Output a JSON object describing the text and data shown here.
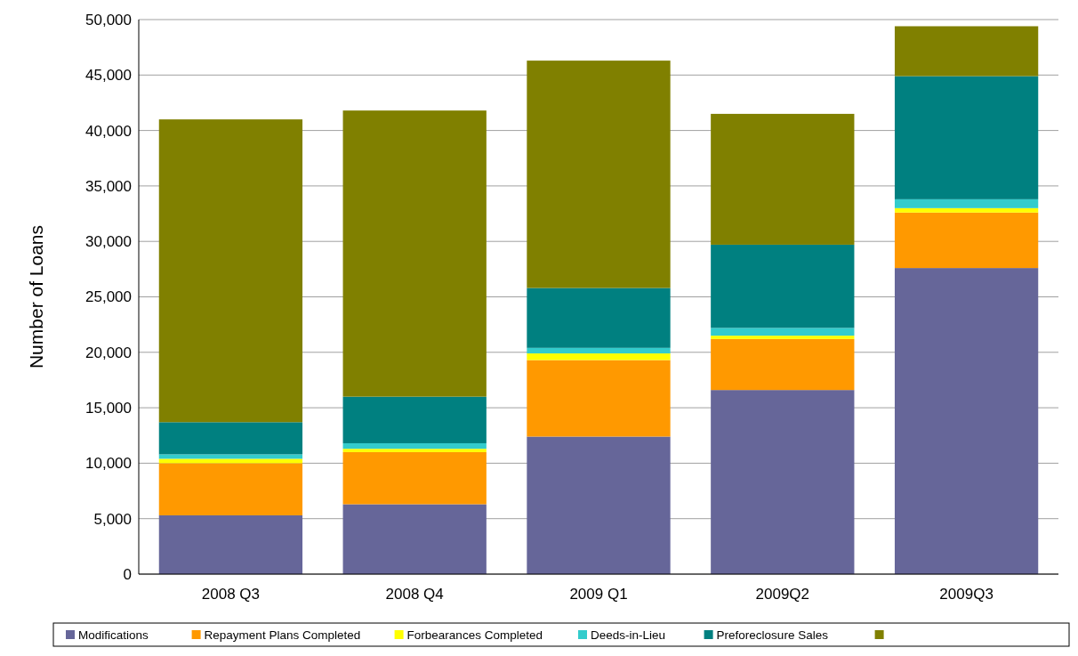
{
  "chart_data": {
    "type": "bar",
    "stacked": true,
    "ylabel": "Number of Loans",
    "categories": [
      "2008 Q3",
      "2008 Q4",
      "2009 Q1",
      "2009Q2",
      "2009Q3"
    ],
    "series": [
      {
        "name": "Modifications",
        "color": "#666699",
        "values": [
          5300,
          6300,
          12400,
          16600,
          27600
        ]
      },
      {
        "name": "Repayment Plans Completed",
        "color": "#ff9900",
        "values": [
          4700,
          4700,
          6900,
          4600,
          5000
        ]
      },
      {
        "name": "Forbearances Completed",
        "color": "#ffff00",
        "values": [
          400,
          300,
          600,
          300,
          400
        ]
      },
      {
        "name": "Deeds-in-Lieu",
        "color": "#33cccc",
        "values": [
          400,
          500,
          500,
          700,
          800
        ]
      },
      {
        "name": "Preforeclosure Sales",
        "color": "#008080",
        "values": [
          2900,
          4200,
          5400,
          7500,
          11100
        ]
      },
      {
        "color": "#808000",
        "values": [
          27300,
          25800,
          20500,
          11800,
          4500
        ]
      }
    ],
    "ylim": [
      0,
      50000
    ],
    "yticks": [
      {
        "value": 0,
        "label": "0"
      },
      {
        "value": 5000,
        "label": "5,000"
      },
      {
        "value": 10000,
        "label": "10,000"
      },
      {
        "value": 15000,
        "label": "15,000"
      },
      {
        "value": 20000,
        "label": "20,000"
      },
      {
        "value": 25000,
        "label": "25,000"
      },
      {
        "value": 30000,
        "label": "30,000"
      },
      {
        "value": 35000,
        "label": "35,000"
      },
      {
        "value": 40000,
        "label": "40,000"
      },
      {
        "value": 45000,
        "label": "45,000"
      },
      {
        "value": 50000,
        "label": "50,000"
      }
    ],
    "grid": "y",
    "legend": "bottom"
  }
}
